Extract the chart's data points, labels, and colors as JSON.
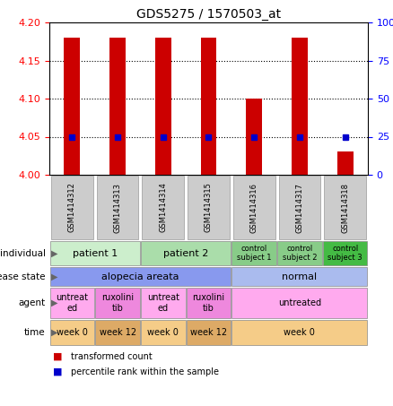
{
  "title": "GDS5275 / 1570503_at",
  "samples": [
    "GSM1414312",
    "GSM1414313",
    "GSM1414314",
    "GSM1414315",
    "GSM1414316",
    "GSM1414317",
    "GSM1414318"
  ],
  "red_values": [
    4.18,
    4.18,
    4.18,
    4.18,
    4.1,
    4.18,
    4.03
  ],
  "blue_values": [
    4.05,
    4.05,
    4.05,
    4.05,
    4.05,
    4.05,
    4.05
  ],
  "ylim": [
    4.0,
    4.2
  ],
  "y2lim": [
    0,
    100
  ],
  "yticks": [
    4.0,
    4.05,
    4.1,
    4.15,
    4.2
  ],
  "y2ticks": [
    0,
    25,
    50,
    75,
    100
  ],
  "dotted_lines": [
    4.05,
    4.1,
    4.15
  ],
  "bar_color": "#cc0000",
  "dot_color": "#0000cc",
  "bar_width": 0.35,
  "annotation_rows": [
    {
      "label": "individual",
      "cells": [
        {
          "text": "patient 1",
          "span": 2,
          "color": "#cceecc",
          "fontsize": 8
        },
        {
          "text": "patient 2",
          "span": 2,
          "color": "#aaddaa",
          "fontsize": 8
        },
        {
          "text": "control\nsubject 1",
          "span": 1,
          "color": "#88cc88",
          "fontsize": 6
        },
        {
          "text": "control\nsubject 2",
          "span": 1,
          "color": "#88cc88",
          "fontsize": 6
        },
        {
          "text": "control\nsubject 3",
          "span": 1,
          "color": "#44bb44",
          "fontsize": 6
        }
      ]
    },
    {
      "label": "disease state",
      "cells": [
        {
          "text": "alopecia areata",
          "span": 4,
          "color": "#8899ee",
          "fontsize": 8
        },
        {
          "text": "normal",
          "span": 3,
          "color": "#aabbee",
          "fontsize": 8
        }
      ]
    },
    {
      "label": "agent",
      "cells": [
        {
          "text": "untreat\ned",
          "span": 1,
          "color": "#ffaaee",
          "fontsize": 7
        },
        {
          "text": "ruxolini\ntib",
          "span": 1,
          "color": "#ee88dd",
          "fontsize": 7
        },
        {
          "text": "untreat\ned",
          "span": 1,
          "color": "#ffaaee",
          "fontsize": 7
        },
        {
          "text": "ruxolini\ntib",
          "span": 1,
          "color": "#ee88dd",
          "fontsize": 7
        },
        {
          "text": "untreated",
          "span": 3,
          "color": "#ffaaee",
          "fontsize": 7
        }
      ]
    },
    {
      "label": "time",
      "cells": [
        {
          "text": "week 0",
          "span": 1,
          "color": "#f5cc88",
          "fontsize": 7
        },
        {
          "text": "week 12",
          "span": 1,
          "color": "#ddaa66",
          "fontsize": 7
        },
        {
          "text": "week 0",
          "span": 1,
          "color": "#f5cc88",
          "fontsize": 7
        },
        {
          "text": "week 12",
          "span": 1,
          "color": "#ddaa66",
          "fontsize": 7
        },
        {
          "text": "week 0",
          "span": 3,
          "color": "#f5cc88",
          "fontsize": 7
        }
      ]
    }
  ],
  "legend": [
    {
      "color": "#cc0000",
      "label": "transformed count"
    },
    {
      "color": "#0000cc",
      "label": "percentile rank within the sample"
    }
  ],
  "bg_color": "#ffffff",
  "sample_bg": "#cccccc"
}
